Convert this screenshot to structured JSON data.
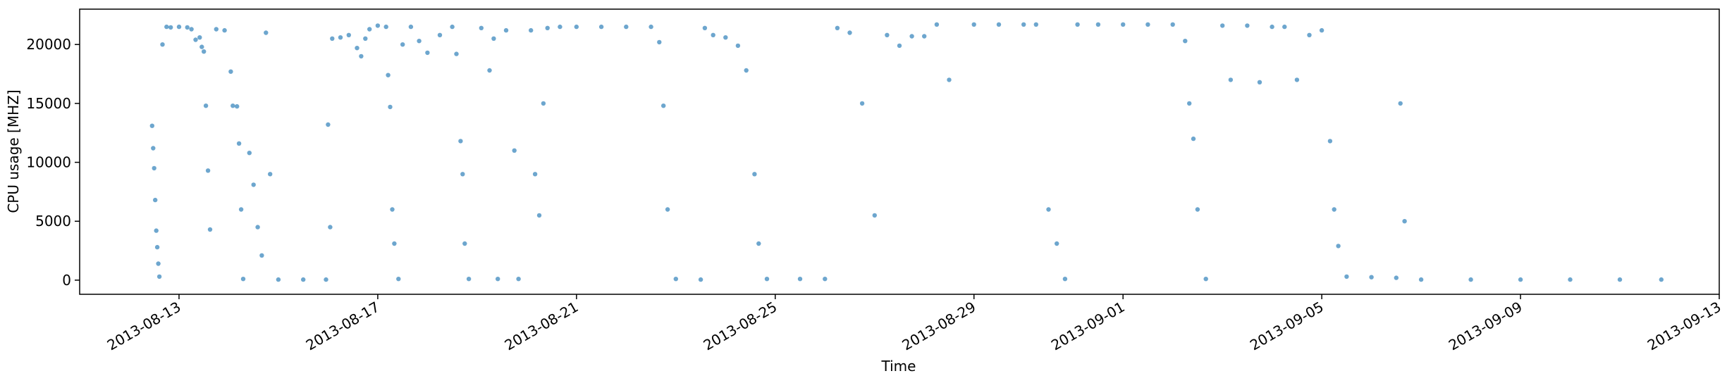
{
  "chart_data": {
    "type": "scatter",
    "title": "",
    "xlabel": "Time",
    "ylabel": "CPU usage [MHZ]",
    "x_axis": {
      "type": "date",
      "range": [
        "2013-08-11",
        "2013-09-13"
      ],
      "ticks": [
        "2013-08-13",
        "2013-08-17",
        "2013-08-21",
        "2013-08-25",
        "2013-08-29",
        "2013-09-01",
        "2013-09-05",
        "2013-09-09",
        "2013-09-13"
      ]
    },
    "y_axis": {
      "range": [
        -1200,
        23000
      ],
      "ticks": [
        0,
        5000,
        10000,
        15000,
        20000
      ],
      "tick_labels": [
        "0",
        "5000",
        "10000",
        "15000",
        "20000"
      ]
    },
    "grid": false,
    "legend": "none",
    "marker_color": "#1f77b4",
    "marker_alpha": 0.4,
    "series": [
      {
        "values_description_note": "",
        "points": [
          [
            "2013-08-12 11:00",
            13100
          ],
          [
            "2013-08-12 11:30",
            11200
          ],
          [
            "2013-08-12 12:00",
            9500
          ],
          [
            "2013-08-12 12:30",
            6800
          ],
          [
            "2013-08-12 13:00",
            4200
          ],
          [
            "2013-08-12 13:30",
            2800
          ],
          [
            "2013-08-12 14:00",
            1400
          ],
          [
            "2013-08-12 14:30",
            300
          ],
          [
            "2013-08-12 16:00",
            20000
          ],
          [
            "2013-08-12 18:00",
            21500
          ],
          [
            "2013-08-12 20:00",
            21450
          ],
          [
            "2013-08-13 00:00",
            21500
          ],
          [
            "2013-08-13 04:00",
            21450
          ],
          [
            "2013-08-13 06:00",
            21300
          ],
          [
            "2013-08-13 08:00",
            20400
          ],
          [
            "2013-08-13 10:00",
            20600
          ],
          [
            "2013-08-13 11:00",
            19800
          ],
          [
            "2013-08-13 12:00",
            19400
          ],
          [
            "2013-08-13 13:00",
            14800
          ],
          [
            "2013-08-13 14:00",
            9300
          ],
          [
            "2013-08-13 15:00",
            4300
          ],
          [
            "2013-08-13 18:00",
            21300
          ],
          [
            "2013-08-13 22:00",
            21200
          ],
          [
            "2013-08-14 01:00",
            17700
          ],
          [
            "2013-08-14 02:00",
            14800
          ],
          [
            "2013-08-14 04:00",
            14750
          ],
          [
            "2013-08-14 05:00",
            11600
          ],
          [
            "2013-08-14 06:00",
            6000
          ],
          [
            "2013-08-14 07:00",
            100
          ],
          [
            "2013-08-14 10:00",
            10800
          ],
          [
            "2013-08-14 12:00",
            8100
          ],
          [
            "2013-08-14 14:00",
            4500
          ],
          [
            "2013-08-14 16:00",
            2100
          ],
          [
            "2013-08-14 18:00",
            21000
          ],
          [
            "2013-08-14 20:00",
            9000
          ],
          [
            "2013-08-15 00:00",
            50
          ],
          [
            "2013-08-15 12:00",
            50
          ],
          [
            "2013-08-15 23:00",
            50
          ],
          [
            "2013-08-16 00:00",
            13200
          ],
          [
            "2013-08-16 01:00",
            4500
          ],
          [
            "2013-08-16 02:00",
            20500
          ],
          [
            "2013-08-16 06:00",
            20600
          ],
          [
            "2013-08-16 10:00",
            20800
          ],
          [
            "2013-08-16 14:00",
            19700
          ],
          [
            "2013-08-16 16:00",
            19000
          ],
          [
            "2013-08-16 18:00",
            20500
          ],
          [
            "2013-08-16 20:00",
            21300
          ],
          [
            "2013-08-17 00:00",
            21600
          ],
          [
            "2013-08-17 04:00",
            21500
          ],
          [
            "2013-08-17 05:00",
            17400
          ],
          [
            "2013-08-17 06:00",
            14700
          ],
          [
            "2013-08-17 07:00",
            6000
          ],
          [
            "2013-08-17 08:00",
            3100
          ],
          [
            "2013-08-17 10:00",
            100
          ],
          [
            "2013-08-17 12:00",
            20000
          ],
          [
            "2013-08-17 16:00",
            21500
          ],
          [
            "2013-08-17 20:00",
            20300
          ],
          [
            "2013-08-18 00:00",
            19300
          ],
          [
            "2013-08-18 06:00",
            20800
          ],
          [
            "2013-08-18 12:00",
            21500
          ],
          [
            "2013-08-18 14:00",
            19200
          ],
          [
            "2013-08-18 16:00",
            11800
          ],
          [
            "2013-08-18 17:00",
            9000
          ],
          [
            "2013-08-18 18:00",
            3100
          ],
          [
            "2013-08-18 20:00",
            100
          ],
          [
            "2013-08-19 02:00",
            21400
          ],
          [
            "2013-08-19 06:00",
            17800
          ],
          [
            "2013-08-19 08:00",
            20500
          ],
          [
            "2013-08-19 10:00",
            100
          ],
          [
            "2013-08-19 14:00",
            21200
          ],
          [
            "2013-08-19 18:00",
            11000
          ],
          [
            "2013-08-19 20:00",
            100
          ],
          [
            "2013-08-20 02:00",
            21200
          ],
          [
            "2013-08-20 04:00",
            9000
          ],
          [
            "2013-08-20 06:00",
            5500
          ],
          [
            "2013-08-20 08:00",
            15000
          ],
          [
            "2013-08-20 10:00",
            21400
          ],
          [
            "2013-08-20 16:00",
            21500
          ],
          [
            "2013-08-21 00:00",
            21500
          ],
          [
            "2013-08-21 12:00",
            21500
          ],
          [
            "2013-08-22 00:00",
            21500
          ],
          [
            "2013-08-22 12:00",
            21500
          ],
          [
            "2013-08-22 16:00",
            20200
          ],
          [
            "2013-08-22 18:00",
            14800
          ],
          [
            "2013-08-22 20:00",
            6000
          ],
          [
            "2013-08-23 00:00",
            100
          ],
          [
            "2013-08-23 12:00",
            50
          ],
          [
            "2013-08-23 14:00",
            21400
          ],
          [
            "2013-08-23 18:00",
            20800
          ],
          [
            "2013-08-24 00:00",
            20600
          ],
          [
            "2013-08-24 06:00",
            19900
          ],
          [
            "2013-08-24 10:00",
            17800
          ],
          [
            "2013-08-24 14:00",
            9000
          ],
          [
            "2013-08-24 16:00",
            3100
          ],
          [
            "2013-08-24 20:00",
            100
          ],
          [
            "2013-08-25 12:00",
            100
          ],
          [
            "2013-08-26 00:00",
            100
          ],
          [
            "2013-08-26 06:00",
            21400
          ],
          [
            "2013-08-26 12:00",
            21000
          ],
          [
            "2013-08-26 18:00",
            15000
          ],
          [
            "2013-08-27 00:00",
            5500
          ],
          [
            "2013-08-27 06:00",
            20800
          ],
          [
            "2013-08-27 12:00",
            19900
          ],
          [
            "2013-08-27 18:00",
            20700
          ],
          [
            "2013-08-28 00:00",
            20700
          ],
          [
            "2013-08-28 06:00",
            21700
          ],
          [
            "2013-08-28 12:00",
            17000
          ],
          [
            "2013-08-29 00:00",
            21700
          ],
          [
            "2013-08-29 12:00",
            21700
          ],
          [
            "2013-08-30 00:00",
            21700
          ],
          [
            "2013-08-30 06:00",
            21700
          ],
          [
            "2013-08-30 12:00",
            6000
          ],
          [
            "2013-08-30 16:00",
            3100
          ],
          [
            "2013-08-30 20:00",
            100
          ],
          [
            "2013-08-31 02:00",
            21700
          ],
          [
            "2013-08-31 12:00",
            21700
          ],
          [
            "2013-09-01 00:00",
            21700
          ],
          [
            "2013-09-01 12:00",
            21700
          ],
          [
            "2013-09-02 00:00",
            21700
          ],
          [
            "2013-09-02 06:00",
            20300
          ],
          [
            "2013-09-02 08:00",
            15000
          ],
          [
            "2013-09-02 10:00",
            12000
          ],
          [
            "2013-09-02 12:00",
            6000
          ],
          [
            "2013-09-02 16:00",
            100
          ],
          [
            "2013-09-03 00:00",
            21600
          ],
          [
            "2013-09-03 04:00",
            17000
          ],
          [
            "2013-09-03 12:00",
            21600
          ],
          [
            "2013-09-03 18:00",
            16800
          ],
          [
            "2013-09-04 00:00",
            21500
          ],
          [
            "2013-09-04 06:00",
            21500
          ],
          [
            "2013-09-04 12:00",
            17000
          ],
          [
            "2013-09-04 18:00",
            20800
          ],
          [
            "2013-09-05 00:00",
            21200
          ],
          [
            "2013-09-05 04:00",
            11800
          ],
          [
            "2013-09-05 06:00",
            6000
          ],
          [
            "2013-09-05 08:00",
            2900
          ],
          [
            "2013-09-05 12:00",
            300
          ],
          [
            "2013-09-06 00:00",
            250
          ],
          [
            "2013-09-06 12:00",
            200
          ],
          [
            "2013-09-06 14:00",
            15000
          ],
          [
            "2013-09-06 16:00",
            5000
          ],
          [
            "2013-09-07 00:00",
            50
          ],
          [
            "2013-09-08 00:00",
            50
          ],
          [
            "2013-09-09 00:00",
            50
          ],
          [
            "2013-09-10 00:00",
            50
          ],
          [
            "2013-09-11 00:00",
            50
          ],
          [
            "2013-09-11 20:00",
            50
          ]
        ]
      }
    ]
  }
}
